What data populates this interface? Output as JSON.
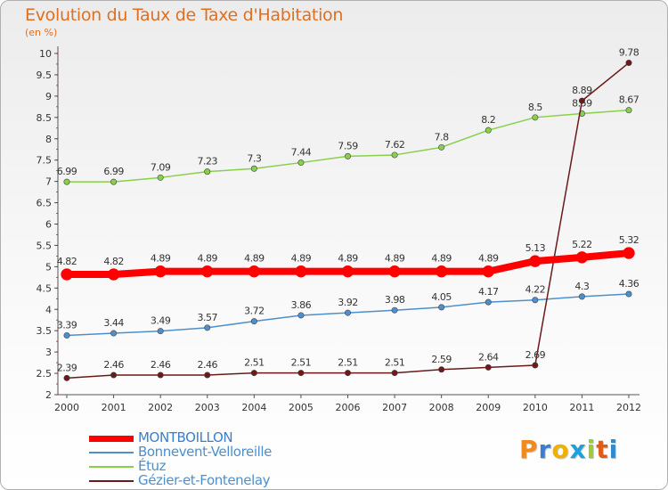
{
  "chart_data": {
    "type": "line",
    "title": "Evolution du Taux de Taxe d'Habitation",
    "subtitle": "(en %)",
    "x": [
      "2000",
      "2001",
      "2002",
      "2003",
      "2004",
      "2005",
      "2006",
      "2007",
      "2008",
      "2009",
      "2010",
      "2011",
      "2012"
    ],
    "ylim": [
      2,
      10
    ],
    "yticks": [
      "2",
      "2.5",
      "3",
      "3.5",
      "4",
      "4.5",
      "5",
      "5.5",
      "6",
      "6.5",
      "7",
      "7.5",
      "8",
      "8.5",
      "9",
      "9.5",
      "10"
    ],
    "grid": false,
    "legend_position": "bottom-left",
    "series": [
      {
        "name": "MONTBOILLON",
        "color": "#ff0000",
        "values": [
          4.82,
          4.82,
          4.89,
          4.89,
          4.89,
          4.89,
          4.89,
          4.89,
          4.89,
          4.89,
          5.13,
          5.22,
          5.32
        ],
        "labels": [
          "4.82",
          "4.82",
          "4.89",
          "4.89",
          "4.89",
          "4.89",
          "4.89",
          "4.89",
          "4.89",
          "4.89",
          "5.13",
          "5.22",
          "5.32"
        ]
      },
      {
        "name": "Bonnevent-Velloreille",
        "color": "#4d8fcc",
        "values": [
          3.39,
          3.44,
          3.49,
          3.57,
          3.72,
          3.86,
          3.92,
          3.98,
          4.05,
          4.17,
          4.22,
          4.3,
          4.36
        ],
        "labels": [
          "3.39",
          "3.44",
          "3.49",
          "3.57",
          "3.72",
          "3.86",
          "3.92",
          "3.98",
          "4.05",
          "4.17",
          "4.22",
          "4.3",
          "4.36"
        ]
      },
      {
        "name": "Étuz",
        "color": "#88d04a",
        "values": [
          6.99,
          6.99,
          7.09,
          7.23,
          7.3,
          7.44,
          7.59,
          7.62,
          7.8,
          8.2,
          8.5,
          8.59,
          8.67
        ],
        "labels": [
          "6.99",
          "6.99",
          "7.09",
          "7.23",
          "7.3",
          "7.44",
          "7.59",
          "7.62",
          "7.8",
          "8.2",
          "8.5",
          "8.59",
          "8.67"
        ]
      },
      {
        "name": "Gézier-et-Fontenelay",
        "color": "#6b1a1a",
        "values": [
          2.39,
          2.46,
          2.46,
          2.46,
          2.51,
          2.51,
          2.51,
          2.51,
          2.59,
          2.64,
          2.69,
          8.89,
          9.78
        ],
        "labels": [
          "2.39",
          "2.46",
          "2.46",
          "2.46",
          "2.51",
          "2.51",
          "2.51",
          "2.51",
          "2.59",
          "2.64",
          "2.69",
          "8.89",
          "9.78"
        ]
      }
    ]
  },
  "logo": {
    "letters": [
      "P",
      "r",
      "o",
      "x",
      "i",
      "t",
      "i"
    ],
    "colors": [
      "#f08a1c",
      "#3a7fd0",
      "#f0b000",
      "#1ca0e0",
      "#9acd32",
      "#e05a1a",
      "#2e8bd0"
    ]
  }
}
